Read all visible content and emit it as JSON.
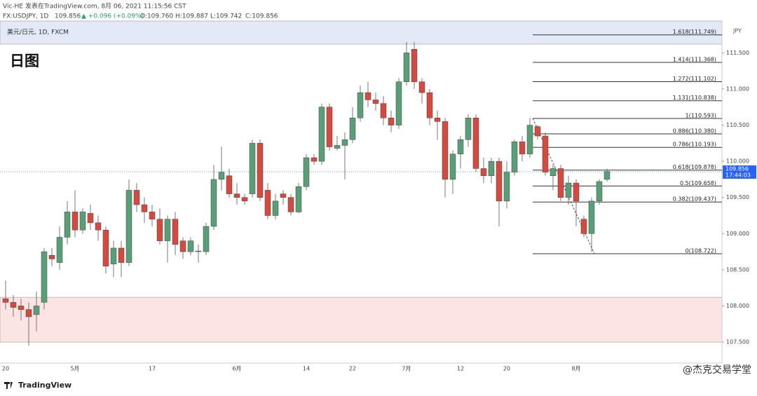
{
  "header": {
    "line1": "Vic-HE 发表在TradingView.com, 8月 06, 2021 11:15:56 CST",
    "symbol": "FX:USDJPY, 1D",
    "last": "109.856",
    "change": "▲ +0.096 (+0.09%)",
    "ohlc": [
      "O:109.760",
      "H:109.887",
      "L:109.742",
      "C:109.856"
    ]
  },
  "chart_data": {
    "type": "candlestick",
    "title": "日图",
    "subtitle": "美元/日元, 1D, FXCM",
    "axis_label": "JPY",
    "categories": [
      "20",
      null,
      null,
      null,
      null,
      null,
      null,
      null,
      null,
      "5月",
      null,
      null,
      null,
      null,
      null,
      null,
      null,
      null,
      null,
      "17",
      null,
      null,
      null,
      null,
      null,
      null,
      null,
      null,
      null,
      null,
      "6月",
      null,
      null,
      null,
      null,
      null,
      null,
      null,
      null,
      "14",
      null,
      null,
      null,
      null,
      null,
      "22",
      null,
      null,
      null,
      null,
      null,
      null,
      "7月",
      null,
      null,
      null,
      null,
      null,
      null,
      "12",
      null,
      null,
      null,
      null,
      null,
      "20",
      null,
      null,
      null,
      null,
      null,
      null,
      null,
      null,
      "8月",
      null,
      null,
      null,
      null
    ],
    "open": [
      108.1,
      108.05,
      108.0,
      107.95,
      107.88,
      108.05,
      108.7,
      108.6,
      108.95,
      109.3,
      109.05,
      109.28,
      109.15,
      109.05,
      108.58,
      108.8,
      108.6,
      109.6,
      109.4,
      109.3,
      109.2,
      108.9,
      109.2,
      108.9,
      108.75,
      108.75,
      108.75,
      109.1,
      109.75,
      109.8,
      109.55,
      109.5,
      109.55,
      110.25,
      109.6,
      109.25,
      109.55,
      109.5,
      109.3,
      109.65,
      110.05,
      110.0,
      110.75,
      110.18,
      110.22,
      110.3,
      110.6,
      110.95,
      110.85,
      110.8,
      110.6,
      110.5,
      111.1,
      111.55,
      111.1,
      110.95,
      110.6,
      110.55,
      109.75,
      110.1,
      110.3,
      110.6,
      109.9,
      109.8,
      110.0,
      109.45,
      109.85,
      110.27,
      110.1,
      110.48,
      110.35,
      109.8,
      109.9,
      109.5,
      109.7,
      109.2,
      109.0,
      109.45,
      109.75
    ],
    "high": [
      108.35,
      108.15,
      108.1,
      108.05,
      108.2,
      108.8,
      108.8,
      109.1,
      109.45,
      109.6,
      109.35,
      109.4,
      109.25,
      109.1,
      108.9,
      108.9,
      109.75,
      109.7,
      109.5,
      109.4,
      109.35,
      109.25,
      109.3,
      108.95,
      108.95,
      108.85,
      109.15,
      109.95,
      110.2,
      109.9,
      109.7,
      109.55,
      110.3,
      110.3,
      109.7,
      109.55,
      109.6,
      109.55,
      109.7,
      110.1,
      110.1,
      110.8,
      110.8,
      110.35,
      110.4,
      110.75,
      111.05,
      111.1,
      110.95,
      110.9,
      110.7,
      111.15,
      111.65,
      111.65,
      111.15,
      111.0,
      110.7,
      110.6,
      110.15,
      110.35,
      110.65,
      110.65,
      110.05,
      110.05,
      110.05,
      110.0,
      110.3,
      110.35,
      110.6,
      110.5,
      110.4,
      109.95,
      109.95,
      109.8,
      109.75,
      109.25,
      109.5,
      109.75,
      109.9
    ],
    "low": [
      107.95,
      107.85,
      107.8,
      107.45,
      107.65,
      107.95,
      108.55,
      108.5,
      108.85,
      108.95,
      109.0,
      109.05,
      108.9,
      108.45,
      108.4,
      108.4,
      108.55,
      109.3,
      109.15,
      109.1,
      108.85,
      108.6,
      108.7,
      108.65,
      108.7,
      108.6,
      108.7,
      109.05,
      109.6,
      109.5,
      109.4,
      109.4,
      109.5,
      109.45,
      109.2,
      109.2,
      109.4,
      109.25,
      109.28,
      109.6,
      109.95,
      109.95,
      110.15,
      110.15,
      109.75,
      110.25,
      110.55,
      110.75,
      110.7,
      110.5,
      110.4,
      110.45,
      111.05,
      111.0,
      110.8,
      110.5,
      110.3,
      109.5,
      109.55,
      109.9,
      110.2,
      109.85,
      109.7,
      109.7,
      109.1,
      109.35,
      109.8,
      110.0,
      110.05,
      110.3,
      109.8,
      109.6,
      109.45,
      109.4,
      109.1,
      108.95,
      108.75,
      109.4,
      109.72
    ],
    "close": [
      108.05,
      107.98,
      107.95,
      107.85,
      108.0,
      108.75,
      108.65,
      108.95,
      109.3,
      109.05,
      109.3,
      109.15,
      109.05,
      108.55,
      108.8,
      108.6,
      109.6,
      109.4,
      109.3,
      109.2,
      108.9,
      109.2,
      108.85,
      108.75,
      108.9,
      108.76,
      109.1,
      109.75,
      109.85,
      109.55,
      109.5,
      109.45,
      110.25,
      109.5,
      109.25,
      109.45,
      109.5,
      109.3,
      109.65,
      110.05,
      110.0,
      110.75,
      110.2,
      110.22,
      110.3,
      110.6,
      110.95,
      110.85,
      110.8,
      110.6,
      110.5,
      111.1,
      111.5,
      111.1,
      110.95,
      110.6,
      110.55,
      109.75,
      110.1,
      110.3,
      110.6,
      109.9,
      109.8,
      110.0,
      109.45,
      109.85,
      110.27,
      110.1,
      110.5,
      110.35,
      109.85,
      109.9,
      109.5,
      109.7,
      109.45,
      109.0,
      109.45,
      109.72,
      109.86
    ],
    "up_color": "#5a9e78",
    "down_color": "#d24a40",
    "ylim": [
      107.21,
      111.94
    ],
    "yticks": [
      {
        "value": 107.5,
        "label": "107.500"
      },
      {
        "value": 108,
        "label": "108.000"
      },
      {
        "value": 108.5,
        "label": "108.500"
      },
      {
        "value": 109,
        "label": "109.000"
      },
      {
        "value": 109.5,
        "label": "109.500"
      },
      {
        "value": 110,
        "label": "110.000"
      },
      {
        "value": 110.5,
        "label": "110.500"
      },
      {
        "value": 111,
        "label": "111.000"
      },
      {
        "value": 111.5,
        "label": "111.500"
      }
    ],
    "last": 109.856,
    "countdown": "17:44:03",
    "last_color": "#2a8a8a",
    "fib_levels": [
      {
        "value": 111.749,
        "label": "1.618(111.749)"
      },
      {
        "value": 111.368,
        "label": "1.414(111.368)"
      },
      {
        "value": 111.102,
        "label": "1.272(111.102)"
      },
      {
        "value": 110.838,
        "label": "1.131(110.838)"
      },
      {
        "value": 110.593,
        "label": "1(110.593)"
      },
      {
        "value": 110.38,
        "label": "0.886(110.380)"
      },
      {
        "value": 110.193,
        "label": "0.786(110.193)"
      },
      {
        "value": 109.878,
        "label": "0.618(109.878)"
      },
      {
        "value": 109.658,
        "label": "0.5(109.658)"
      },
      {
        "value": 109.437,
        "label": "0.382(109.437)"
      },
      {
        "value": 108.722,
        "label": "0(108.722)"
      }
    ],
    "zones": [
      {
        "from": 111.62,
        "to": 111.94,
        "color": "#e4e9f8"
      },
      {
        "from": 107.5,
        "to": 108.12,
        "color": "#fbe4e2"
      }
    ]
  },
  "footer": {
    "logo": "TradingView",
    "watermark": "@杰克交易学堂"
  }
}
